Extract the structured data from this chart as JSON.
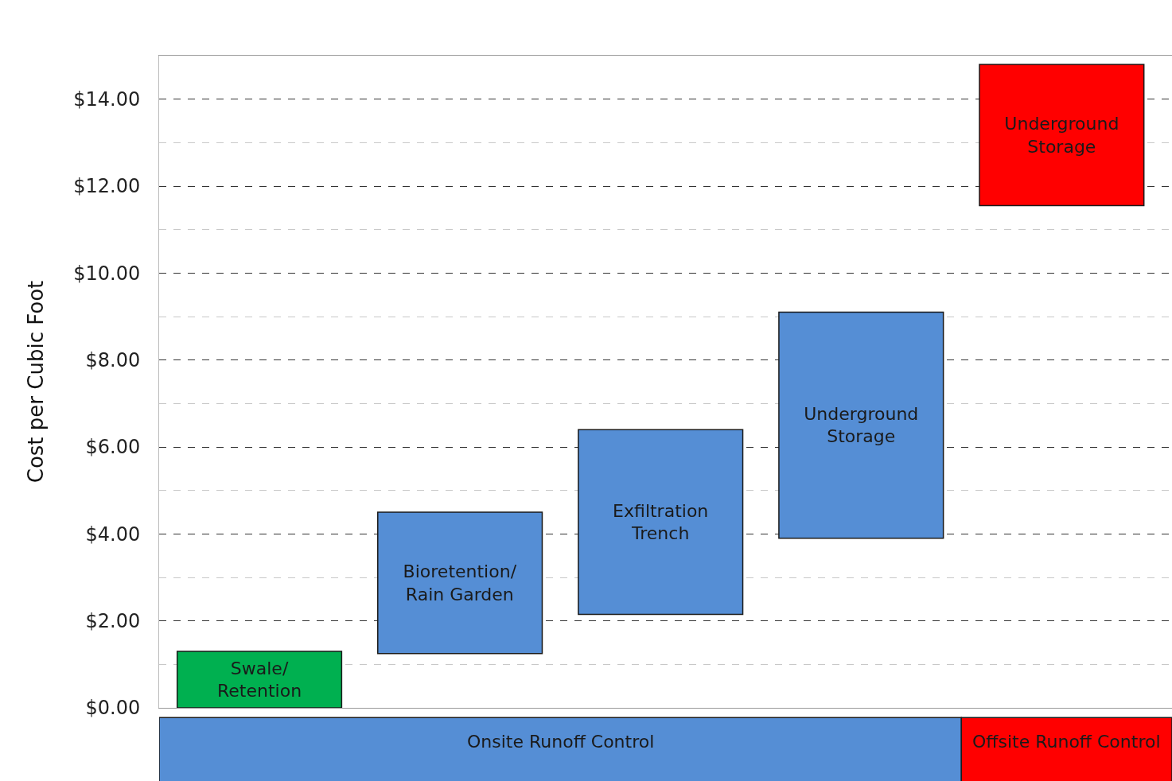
{
  "chart_data": {
    "type": "bar",
    "ylabel": "Cost per Cubic Foot",
    "categories": [
      "Swale/\nRetention",
      "Bioretention/\nRain Garden",
      "Exfiltration\nTrench",
      "Underground\nStorage",
      "Underground\nStorage"
    ],
    "base": [
      0,
      1.25,
      2.15,
      3.9,
      11.55
    ],
    "values": [
      1.3,
      3.25,
      4.25,
      5.2,
      3.25
    ],
    "colors": [
      "#00b050",
      "#558ed5",
      "#558ed5",
      "#558ed5",
      "#ff0000"
    ],
    "ylim": [
      0,
      15
    ],
    "yticks": [
      {
        "value": 0,
        "label": "$0.00"
      },
      {
        "value": 2,
        "label": "$2.00"
      },
      {
        "value": 4,
        "label": "$4.00"
      },
      {
        "value": 6,
        "label": "$6.00"
      },
      {
        "value": 8,
        "label": "$8.00"
      },
      {
        "value": 10,
        "label": "$10.00"
      },
      {
        "value": 12,
        "label": "$12.00"
      },
      {
        "value": 14,
        "label": "$14.00"
      }
    ],
    "grid": "y",
    "annotations": [
      "Onsite Runoff Control",
      "Offsite Runoff Control"
    ]
  }
}
